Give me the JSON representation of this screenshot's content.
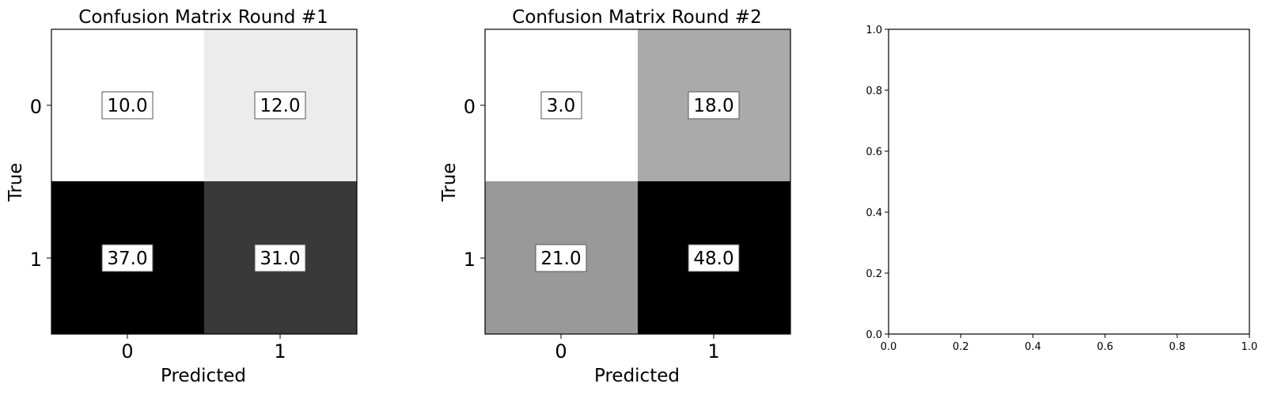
{
  "chart_data": [
    {
      "type": "heatmap",
      "title": "Confusion Matrix Round #1",
      "xlabel": "Predicted",
      "ylabel": "True",
      "x_categories": [
        "0",
        "1"
      ],
      "y_categories": [
        "0",
        "1"
      ],
      "values": [
        [
          10.0,
          12.0
        ],
        [
          37.0,
          31.0
        ]
      ],
      "value_labels": [
        [
          "10.0",
          "12.0"
        ],
        [
          "37.0",
          "31.0"
        ]
      ],
      "colormap": "greys",
      "grid": false
    },
    {
      "type": "heatmap",
      "title": "Confusion Matrix Round #2",
      "xlabel": "Predicted",
      "ylabel": "True",
      "x_categories": [
        "0",
        "1"
      ],
      "y_categories": [
        "0",
        "1"
      ],
      "values": [
        [
          3.0,
          18.0
        ],
        [
          21.0,
          48.0
        ]
      ],
      "value_labels": [
        [
          "3.0",
          "18.0"
        ],
        [
          "21.0",
          "48.0"
        ]
      ],
      "colormap": "greys",
      "grid": false
    },
    {
      "type": "scatter",
      "title": "",
      "xlabel": "",
      "ylabel": "",
      "xlim": [
        0.0,
        1.0
      ],
      "ylim": [
        0.0,
        1.0
      ],
      "xticks": [
        "0.0",
        "0.2",
        "0.4",
        "0.6",
        "0.8",
        "1.0"
      ],
      "yticks": [
        "0.0",
        "0.2",
        "0.4",
        "0.6",
        "0.8",
        "1.0"
      ],
      "series": [],
      "grid": false
    }
  ]
}
